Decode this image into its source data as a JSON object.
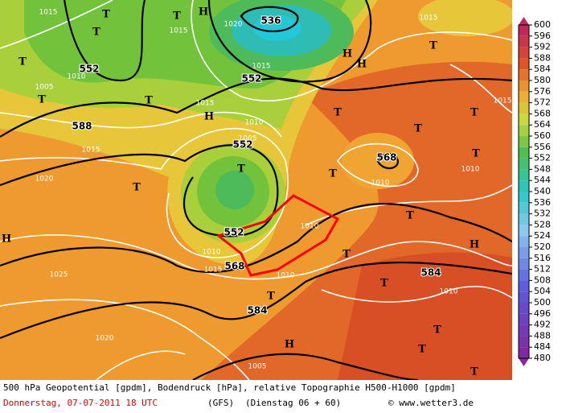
{
  "map": {
    "isobar_labels": [
      "1015",
      "1010",
      "1005",
      "1020",
      "1015",
      "1015",
      "1015",
      "1010",
      "1005",
      "1015",
      "1020",
      "1025",
      "1020",
      "1005",
      "1010",
      "1015",
      "1010",
      "1010",
      "1010",
      "1015",
      "1015",
      "1010",
      "1010"
    ],
    "geopotential_labels": [
      "552",
      "552",
      "536",
      "588",
      "552",
      "552",
      "568",
      "584",
      "584",
      "568"
    ],
    "symbols": [
      "T",
      "H",
      "T",
      "H",
      "T",
      "T",
      "H",
      "T",
      "T",
      "T",
      "H",
      "T",
      "T",
      "T",
      "T",
      "T",
      "T",
      "T",
      "T",
      "H",
      "T",
      "T",
      "H",
      "T",
      "H",
      "T",
      "T",
      "T"
    ]
  },
  "legend": {
    "ticks": [
      600,
      596,
      592,
      588,
      584,
      580,
      576,
      572,
      568,
      564,
      560,
      556,
      552,
      548,
      544,
      540,
      536,
      532,
      528,
      524,
      520,
      516,
      512,
      508,
      504,
      500,
      496,
      492,
      488,
      484,
      480
    ]
  },
  "footer": {
    "line1": "500 hPa Geopotential [gpdm], Bodendruck [hPa], relative Topographie H500-H1000 [gpdm]",
    "date": "Donnerstag, 07-07-2011   18 UTC",
    "model": "(GFS)",
    "run": "(Dienstag 06 + 60)",
    "credit": "© www.wetter3.de"
  }
}
